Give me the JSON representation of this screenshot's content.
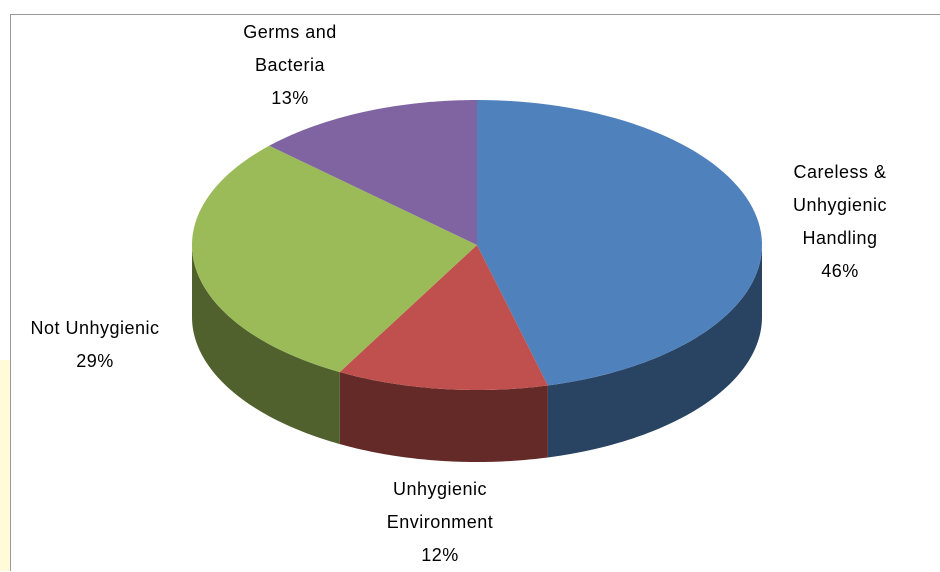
{
  "chart_data": {
    "type": "pie",
    "categories": [
      "Careless & Unhygienic Handling",
      "Unhygienic Environment",
      "Not Unhygienic",
      "Germs and Bacteria"
    ],
    "values": [
      46,
      12,
      29,
      13
    ],
    "value_labels": [
      "46%",
      "12%",
      "29%",
      "13%"
    ],
    "colors": [
      "#4f81bd",
      "#c0504d",
      "#9bbb59",
      "#8064a2"
    ]
  }
}
